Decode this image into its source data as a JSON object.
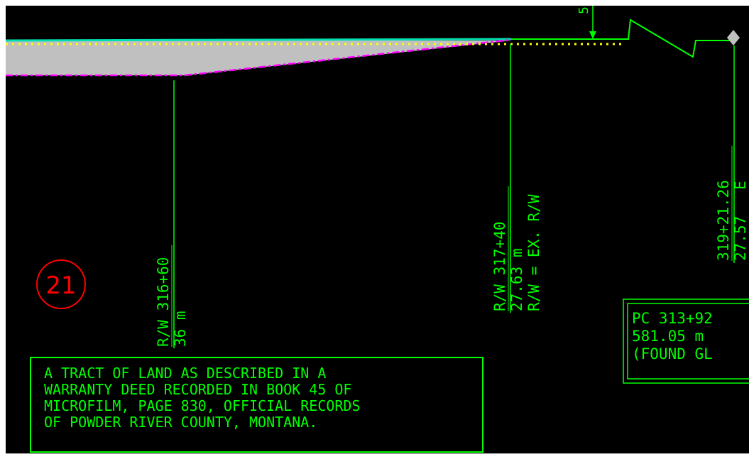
{
  "colors": {
    "background": "#000000",
    "line": "#00ff00",
    "label": "#00ff00",
    "callout": "#ff0000",
    "existing_row": "#ff00ff",
    "centerline": "#ffff00",
    "fill": "#c0c0c0",
    "edge": "#00e0b0",
    "frame": "#ffffff"
  },
  "callout": {
    "number": "21"
  },
  "station_labels": [
    {
      "station": "R/W 316+60",
      "offset": "36 m",
      "remark": ""
    },
    {
      "station": "R/W 317+40",
      "offset": "27.63 m",
      "remark": "R/W = EX. R/W"
    },
    {
      "station": "319+21.26",
      "offset": "27.57",
      "remark": "E"
    }
  ],
  "top_fragment": "5",
  "pc_box": {
    "line1": "PC 313+92",
    "line2": "581.05 m",
    "line3": "(FOUND GL"
  },
  "note_box": {
    "lines": [
      "A TRACT OF LAND AS DESCRIBED IN A",
      "WARRANTY DEED RECORDED IN BOOK 45 OF",
      "MICROFILM, PAGE 830, OFFICIAL RECORDS",
      "OF POWDER RIVER COUNTY, MONTANA."
    ]
  },
  "icons": {
    "monument": "diamond-monument-icon",
    "arrow": "arrow-down-icon"
  }
}
